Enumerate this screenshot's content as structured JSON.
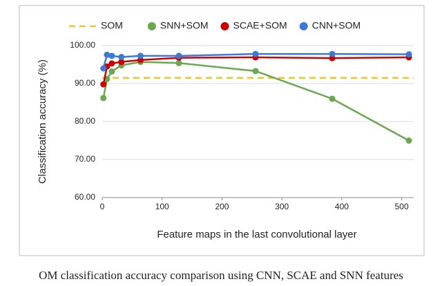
{
  "chart_data": {
    "type": "line",
    "x": [
      2,
      8,
      16,
      32,
      64,
      128,
      256,
      384,
      512
    ],
    "series": [
      {
        "name": "SNN+SOM",
        "color": "#6aa84f",
        "values": [
          86.2,
          91.2,
          93.2,
          94.8,
          95.7,
          95.4,
          93.3,
          86.0,
          75.0
        ]
      },
      {
        "name": "SCAE+SOM",
        "color": "#cc0000",
        "values": [
          89.8,
          94.5,
          95.3,
          95.7,
          96.2,
          96.8,
          96.9,
          96.7,
          96.9
        ]
      },
      {
        "name": "CNN+SOM",
        "color": "#3c78d8",
        "values": [
          94.0,
          97.6,
          97.3,
          97.0,
          97.3,
          97.3,
          97.8,
          97.8,
          97.7
        ]
      }
    ],
    "reference_line": {
      "name": "SOM",
      "value": 91.5,
      "color": "#f1c232"
    },
    "xlim": [
      0,
      520
    ],
    "xticks": [
      0,
      100,
      200,
      300,
      400,
      500
    ],
    "ylim": [
      60,
      100
    ],
    "yticks": [
      {
        "value": 60,
        "label": "60.00"
      },
      {
        "value": 70,
        "label": "70.00"
      },
      {
        "value": 80,
        "label": "80.00"
      },
      {
        "value": 90,
        "label": "90.00"
      },
      {
        "value": 100,
        "label": "100.00"
      }
    ],
    "x_label": "Feature maps in the last convolutional layer",
    "y_label": "Classification accuracy (%)",
    "grid": true,
    "caption": "OM classification accuracy comparison using CNN, SCAE and SNN features"
  }
}
